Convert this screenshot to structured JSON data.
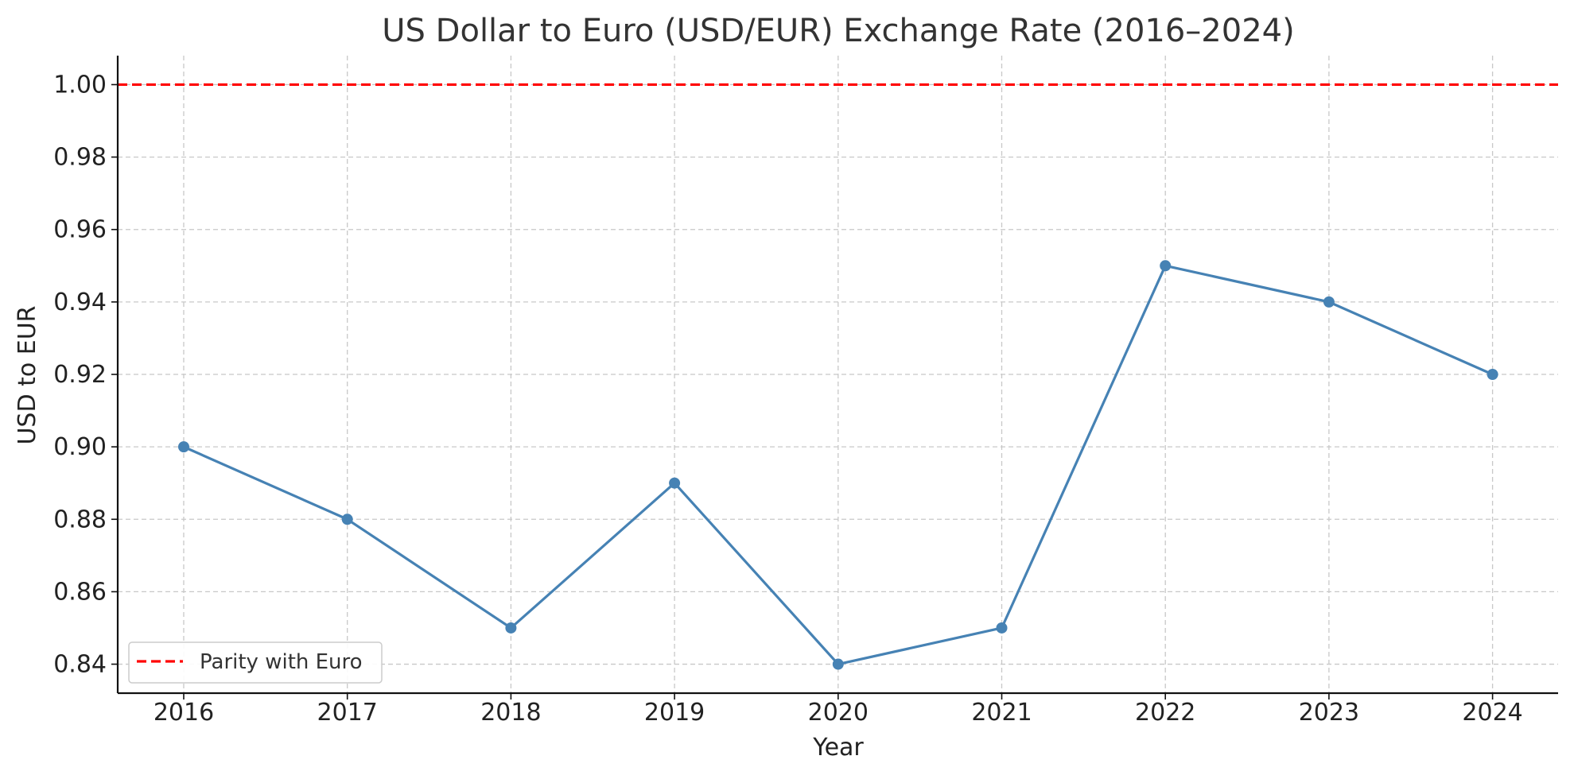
{
  "colors": {
    "series": "#4682b4",
    "reference": "#ff0000",
    "grid": "#c8c8c8",
    "axis": "#111111",
    "background": "#ffffff"
  },
  "chart_data": {
    "type": "line",
    "title": "US Dollar to Euro (USD/EUR) Exchange Rate (2016–2024)",
    "xlabel": "Year",
    "ylabel": "USD to EUR",
    "x": [
      "2016",
      "2017",
      "2018",
      "2019",
      "2020",
      "2021",
      "2022",
      "2023",
      "2024"
    ],
    "series": [
      {
        "values": [
          0.9,
          0.88,
          0.85,
          0.89,
          0.84,
          0.85,
          0.95,
          0.94,
          0.92
        ],
        "color": "#4682b4",
        "marker": "circle"
      }
    ],
    "reference_lines": [
      {
        "name": "Parity with Euro",
        "y": 1.0,
        "color": "#ff0000",
        "style": "dashed"
      }
    ],
    "ylim": [
      0.832,
      1.008
    ],
    "yticks": [
      "0.84",
      "0.86",
      "0.88",
      "0.90",
      "0.92",
      "0.94",
      "0.96",
      "0.98",
      "1.00"
    ],
    "grid": true,
    "legend": {
      "placement": "lower-left",
      "entries": [
        "Parity with Euro"
      ]
    }
  }
}
